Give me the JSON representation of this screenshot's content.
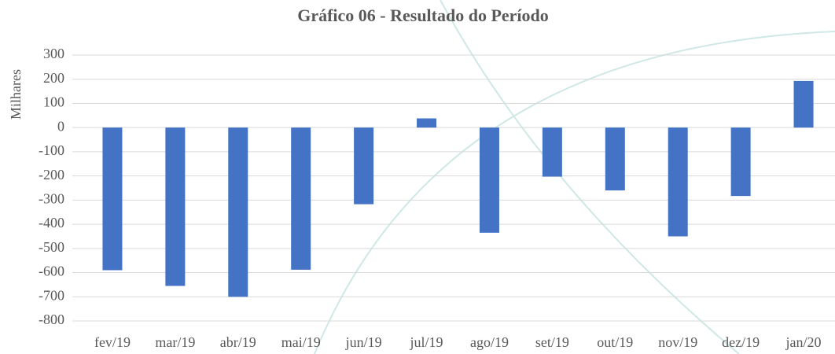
{
  "chart_data": {
    "type": "bar",
    "title": "Gráfico 06 - Resultado do Período",
    "y_label": "Milhares",
    "categories": [
      "fev/19",
      "mar/19",
      "abr/19",
      "mai/19",
      "jun/19",
      "jul/19",
      "ago/19",
      "set/19",
      "out/19",
      "nov/19",
      "dez/19",
      "jan/20"
    ],
    "values": [
      -590,
      -655,
      -700,
      -588,
      -317,
      38,
      -435,
      -203,
      -260,
      -450,
      -283,
      193
    ],
    "color": "#4472c4",
    "ylim": [
      -800,
      300
    ],
    "yticks": [
      -800,
      -700,
      -600,
      -500,
      -400,
      -300,
      -200,
      -100,
      0,
      100,
      200,
      300
    ],
    "grid": true
  }
}
